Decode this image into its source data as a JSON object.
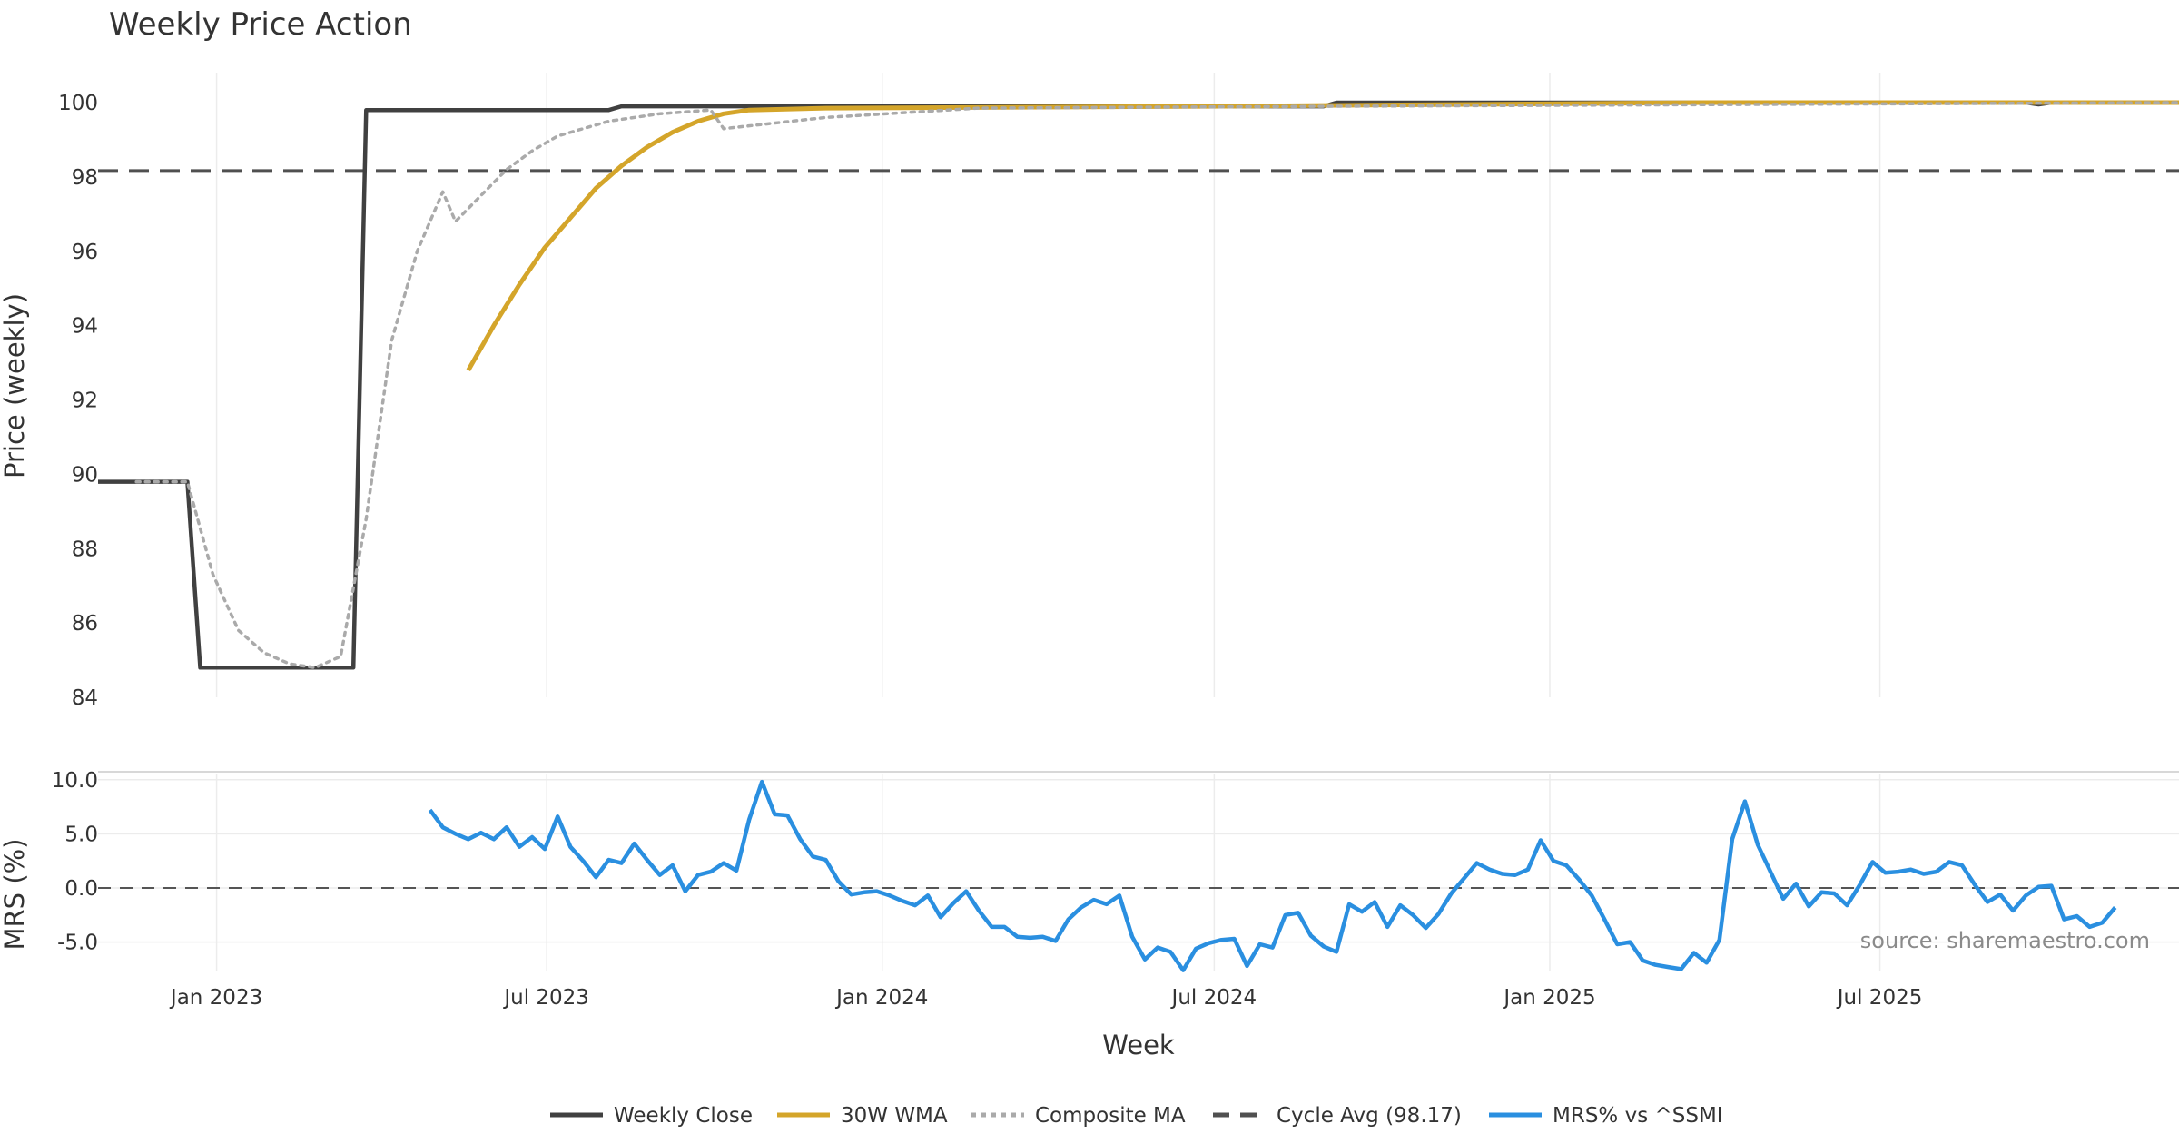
{
  "chart_data": {
    "type": "line",
    "title": "Weekly Price Action",
    "xlabel": "Week",
    "x_ticks": [
      "Jan 2023",
      "Jul 2023",
      "Jan 2024",
      "Jul 2024",
      "Jan 2025",
      "Jul 2025"
    ],
    "price_panel": {
      "ylabel": "Price (weekly)",
      "ylim": [
        84,
        101
      ],
      "y_ticks": [
        "84",
        "86",
        "88",
        "90",
        "92",
        "94",
        "96",
        "98",
        "100"
      ],
      "series": [
        {
          "name": "Weekly Close",
          "color": "#404040",
          "style": "solid",
          "points": [
            [
              "2022-10-28",
              89.8
            ],
            [
              "2022-12-16",
              89.8
            ],
            [
              "2022-12-23",
              84.8
            ],
            [
              "2023-03-17",
              84.8
            ],
            [
              "2023-03-24",
              99.8
            ],
            [
              "2023-08-04",
              99.8
            ],
            [
              "2023-08-11",
              99.9
            ],
            [
              "2024-06-28",
              99.9
            ],
            [
              "2024-08-30",
              99.9
            ],
            [
              "2024-09-06",
              100.0
            ],
            [
              "2025-09-19",
              100.0
            ],
            [
              "2025-09-26",
              99.95
            ],
            [
              "2025-10-03",
              100.0
            ],
            [
              "2025-12-12",
              100.0
            ]
          ]
        },
        {
          "name": "30W WMA",
          "color": "#D4A52A",
          "style": "solid",
          "points": [
            [
              "2023-05-19",
              92.8
            ],
            [
              "2023-06-02",
              94.0
            ],
            [
              "2023-06-16",
              95.1
            ],
            [
              "2023-06-30",
              96.1
            ],
            [
              "2023-07-14",
              96.9
            ],
            [
              "2023-07-28",
              97.7
            ],
            [
              "2023-08-11",
              98.3
            ],
            [
              "2023-08-25",
              98.8
            ],
            [
              "2023-09-08",
              99.2
            ],
            [
              "2023-09-22",
              99.5
            ],
            [
              "2023-10-06",
              99.7
            ],
            [
              "2023-10-20",
              99.8
            ],
            [
              "2023-12-01",
              99.85
            ],
            [
              "2024-06-28",
              99.9
            ],
            [
              "2025-03-28",
              100.0
            ],
            [
              "2025-12-12",
              100.0
            ]
          ]
        },
        {
          "name": "Composite MA",
          "color": "#AAAAAA",
          "style": "dotted",
          "points": [
            [
              "2022-11-18",
              89.8
            ],
            [
              "2022-12-16",
              89.8
            ],
            [
              "2022-12-30",
              87.3
            ],
            [
              "2023-01-13",
              85.8
            ],
            [
              "2023-01-27",
              85.2
            ],
            [
              "2023-02-10",
              84.9
            ],
            [
              "2023-02-24",
              84.8
            ],
            [
              "2023-03-10",
              85.1
            ],
            [
              "2023-03-24",
              88.8
            ],
            [
              "2023-04-07",
              93.6
            ],
            [
              "2023-04-21",
              96.0
            ],
            [
              "2023-05-05",
              97.6
            ],
            [
              "2023-05-12",
              96.8
            ],
            [
              "2023-05-26",
              97.5
            ],
            [
              "2023-06-09",
              98.2
            ],
            [
              "2023-06-23",
              98.7
            ],
            [
              "2023-07-07",
              99.1
            ],
            [
              "2023-07-21",
              99.3
            ],
            [
              "2023-08-04",
              99.5
            ],
            [
              "2023-09-01",
              99.7
            ],
            [
              "2023-09-29",
              99.8
            ],
            [
              "2023-10-06",
              99.3
            ],
            [
              "2023-12-01",
              99.6
            ],
            [
              "2024-02-23",
              99.85
            ],
            [
              "2024-08-30",
              99.9
            ],
            [
              "2025-12-12",
              100.0
            ]
          ]
        },
        {
          "name": "Cycle Avg (98.17)",
          "color": "#505050",
          "style": "dashed",
          "value": 98.17
        }
      ]
    },
    "mrs_panel": {
      "ylabel": "MRS (%)",
      "ylim": [
        -8.5,
        10.6
      ],
      "y_ticks": [
        "-5.0",
        "0.0",
        "5.0",
        "10.0"
      ],
      "zero_line": 0,
      "series": [
        {
          "name": "MRS% vs ^SSMI",
          "color": "#2A8FE0",
          "style": "solid",
          "start": "2023-04-28",
          "step_days": 7,
          "values": [
            7.2,
            5.6,
            5.0,
            4.5,
            5.1,
            4.5,
            5.6,
            3.8,
            4.7,
            3.6,
            6.6,
            3.8,
            2.5,
            1.0,
            2.6,
            2.3,
            4.1,
            2.6,
            1.2,
            2.1,
            -0.3,
            1.2,
            1.5,
            2.3,
            1.6,
            6.3,
            9.8,
            6.8,
            6.7,
            4.5,
            2.9,
            2.6,
            0.6,
            -0.6,
            -0.4,
            -0.3,
            -0.7,
            -1.2,
            -1.6,
            -0.7,
            -2.7,
            -1.4,
            -0.3,
            -2.1,
            -3.6,
            -3.6,
            -4.5,
            -4.6,
            -4.5,
            -4.9,
            -2.9,
            -1.8,
            -1.1,
            -1.5,
            -0.7,
            -4.5,
            -6.6,
            -5.5,
            -5.9,
            -7.6,
            -5.6,
            -5.1,
            -4.8,
            -4.7,
            -7.2,
            -5.2,
            -5.5,
            -2.5,
            -2.3,
            -4.4,
            -5.4,
            -5.9,
            -1.5,
            -2.2,
            -1.3,
            -3.6,
            -1.6,
            -2.5,
            -3.7,
            -2.4,
            -0.5,
            0.9,
            2.3,
            1.7,
            1.3,
            1.2,
            1.7,
            4.4,
            2.5,
            2.1,
            0.8,
            -0.7,
            -2.9,
            -5.2,
            -5.0,
            -6.7,
            -7.1,
            -7.3,
            -7.5,
            -6.0,
            -6.9,
            -4.8,
            4.5,
            8.0,
            4.0,
            1.5,
            -1.0,
            0.4,
            -1.7,
            -0.4,
            -0.5,
            -1.6,
            0.3,
            2.4,
            1.4,
            1.5,
            1.7,
            1.3,
            1.5,
            2.4,
            2.1,
            0.3,
            -1.3,
            -0.6,
            -2.1,
            -0.7,
            0.1,
            0.2,
            -2.9,
            -2.6,
            -3.6,
            -3.2,
            -1.8
          ]
        }
      ]
    },
    "legend": {
      "placement": "bottom-center",
      "entries": [
        {
          "label": "Weekly Close",
          "color": "#404040",
          "style": "solid"
        },
        {
          "label": "30W WMA",
          "color": "#D4A52A",
          "style": "solid"
        },
        {
          "label": "Composite MA",
          "color": "#AAAAAA",
          "style": "dotted"
        },
        {
          "label": "Cycle Avg (98.17)",
          "color": "#505050",
          "style": "dashed"
        },
        {
          "label": "MRS% vs ^SSMI",
          "color": "#2A8FE0",
          "style": "solid"
        }
      ]
    },
    "annotation": "source: sharemaestro.com",
    "grid": true
  }
}
